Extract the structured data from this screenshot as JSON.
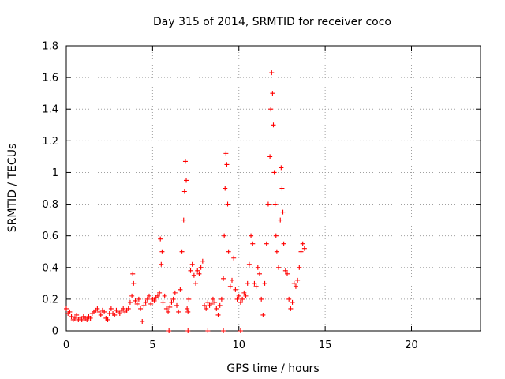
{
  "chart_data": {
    "type": "scatter",
    "title": "Day 315 of 2014, SRMTID for receiver coco",
    "xlabel": "GPS time / hours",
    "ylabel": "SRMTID / TECUs",
    "xlim": [
      0,
      24
    ],
    "ylim": [
      0,
      1.8
    ],
    "xticks": [
      0,
      5,
      10,
      15,
      20
    ],
    "xtick_labels": [
      "0",
      "5",
      "10",
      "15",
      "20"
    ],
    "yticks": [
      0,
      0.2,
      0.4,
      0.6,
      0.8,
      1,
      1.2,
      1.4,
      1.6,
      1.8
    ],
    "ytick_labels": [
      "0",
      "0.2",
      "0.4",
      "0.6",
      "0.8",
      "1",
      "1.2",
      "1.4",
      "1.6",
      "1.8"
    ],
    "grid": true,
    "marker": "+",
    "color": "#ff0000",
    "series": [
      {
        "name": "SRMTID",
        "x": [
          0.0,
          0.1,
          0.2,
          0.3,
          0.4,
          0.5,
          0.6,
          0.7,
          0.8,
          0.9,
          1.0,
          1.1,
          1.2,
          1.3,
          1.4,
          1.5,
          1.6,
          1.7,
          1.8,
          1.9,
          2.0,
          2.1,
          2.2,
          2.3,
          2.4,
          2.5,
          2.6,
          2.7,
          2.8,
          2.9,
          3.0,
          3.1,
          3.2,
          3.3,
          3.4,
          3.5,
          3.6,
          3.7,
          3.8,
          3.85,
          3.9,
          4.0,
          4.1,
          4.2,
          4.3,
          4.4,
          4.5,
          4.6,
          4.7,
          4.8,
          4.9,
          5.0,
          5.1,
          5.2,
          5.3,
          5.4,
          5.45,
          5.5,
          5.55,
          5.6,
          5.7,
          5.8,
          5.9,
          6.0,
          6.1,
          6.2,
          6.3,
          6.4,
          6.5,
          6.6,
          6.7,
          6.8,
          6.85,
          6.9,
          6.95,
          7.0,
          7.05,
          7.1,
          7.2,
          7.3,
          7.4,
          7.5,
          7.6,
          7.7,
          7.8,
          7.9,
          8.0,
          8.1,
          8.2,
          8.3,
          8.4,
          8.5,
          8.6,
          8.7,
          8.8,
          8.9,
          9.0,
          9.1,
          9.15,
          9.2,
          9.25,
          9.3,
          9.35,
          9.4,
          9.5,
          9.6,
          9.7,
          9.8,
          9.9,
          10.0,
          10.1,
          10.2,
          10.3,
          10.4,
          10.5,
          10.6,
          10.7,
          10.8,
          10.9,
          11.0,
          11.1,
          11.2,
          11.3,
          11.4,
          11.5,
          11.6,
          11.7,
          11.8,
          11.85,
          11.9,
          11.95,
          12.0,
          12.05,
          12.1,
          12.15,
          12.2,
          12.3,
          12.4,
          12.45,
          12.5,
          12.55,
          12.6,
          12.7,
          12.8,
          12.9,
          13.0,
          13.1,
          13.2,
          13.3,
          13.4,
          13.5,
          13.6,
          13.7,
          13.8,
          5.95,
          7.05,
          8.2,
          9.1,
          10.1
        ],
        "y": [
          0.14,
          0.11,
          0.12,
          0.09,
          0.07,
          0.08,
          0.1,
          0.07,
          0.08,
          0.07,
          0.09,
          0.08,
          0.07,
          0.09,
          0.08,
          0.11,
          0.12,
          0.13,
          0.14,
          0.12,
          0.1,
          0.13,
          0.12,
          0.08,
          0.07,
          0.11,
          0.14,
          0.11,
          0.1,
          0.13,
          0.12,
          0.11,
          0.13,
          0.14,
          0.12,
          0.13,
          0.14,
          0.18,
          0.22,
          0.36,
          0.3,
          0.19,
          0.17,
          0.2,
          0.14,
          0.06,
          0.16,
          0.18,
          0.2,
          0.22,
          0.17,
          0.2,
          0.19,
          0.21,
          0.22,
          0.24,
          0.58,
          0.42,
          0.5,
          0.18,
          0.22,
          0.14,
          0.12,
          0.15,
          0.18,
          0.2,
          0.24,
          0.16,
          0.12,
          0.26,
          0.5,
          0.7,
          0.88,
          1.07,
          0.95,
          0.14,
          0.12,
          0.2,
          0.38,
          0.42,
          0.35,
          0.3,
          0.38,
          0.36,
          0.4,
          0.44,
          0.16,
          0.14,
          0.18,
          0.16,
          0.17,
          0.2,
          0.18,
          0.14,
          0.1,
          0.16,
          0.2,
          0.33,
          0.6,
          0.9,
          1.12,
          1.05,
          0.8,
          0.5,
          0.28,
          0.32,
          0.46,
          0.26,
          0.2,
          0.22,
          0.18,
          0.2,
          0.24,
          0.22,
          0.3,
          0.42,
          0.6,
          0.55,
          0.3,
          0.28,
          0.4,
          0.36,
          0.2,
          0.1,
          0.3,
          0.55,
          0.8,
          1.1,
          1.4,
          1.63,
          1.5,
          1.3,
          1.0,
          0.8,
          0.6,
          0.5,
          0.4,
          0.7,
          1.03,
          0.9,
          0.75,
          0.55,
          0.38,
          0.36,
          0.2,
          0.14,
          0.18,
          0.3,
          0.28,
          0.32,
          0.4,
          0.5,
          0.55,
          0.52,
          0.0,
          0.0,
          0.0,
          0.0,
          0.0
        ]
      }
    ]
  }
}
